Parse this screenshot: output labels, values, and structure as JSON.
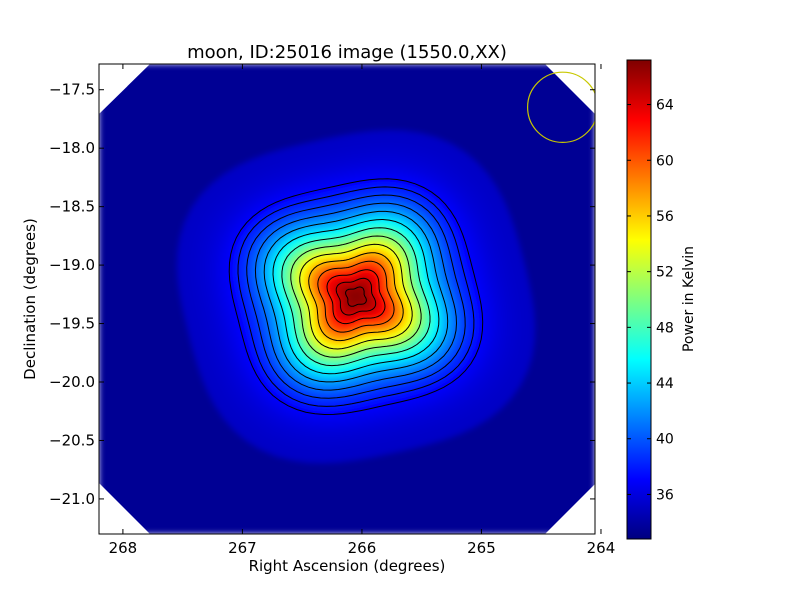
{
  "chart_data": {
    "type": "heatmap",
    "title": "moon, ID:25016 image (1550.0,XX)",
    "xlabel": "Right Ascension (degrees)",
    "ylabel": "Declination (degrees)",
    "xlim": [
      268.2,
      264.05
    ],
    "ylim": [
      -21.3,
      -17.28
    ],
    "xticks": [
      268,
      267,
      266,
      265,
      264
    ],
    "xtick_labels": [
      "268",
      "267",
      "266",
      "265",
      "264"
    ],
    "yticks": [
      -17.5,
      -18.0,
      -18.5,
      -19.0,
      -19.5,
      -20.0,
      -20.5,
      -21.0
    ],
    "ytick_labels": [
      "−17.5",
      "−18.0",
      "−18.5",
      "−19.0",
      "−19.5",
      "−20.0",
      "−20.5",
      "−21.0"
    ],
    "colorbar": {
      "label": "Power in Kelvin",
      "range": [
        32.8,
        67.2
      ],
      "ticks": [
        36,
        40,
        44,
        48,
        52,
        56,
        60,
        64
      ],
      "tick_labels": [
        "36",
        "40",
        "44",
        "48",
        "52",
        "56",
        "60",
        "64"
      ],
      "colormap": "jet"
    },
    "source_peak": {
      "ra": 266.05,
      "dec": -19.27,
      "value": 67.0
    },
    "background_value": 35.0,
    "contours": {
      "count": 14,
      "color": "#000000"
    },
    "beam_circle": {
      "ra": 264.32,
      "dec": -17.65,
      "radius_deg": 0.3,
      "color": "#c8c800"
    }
  }
}
